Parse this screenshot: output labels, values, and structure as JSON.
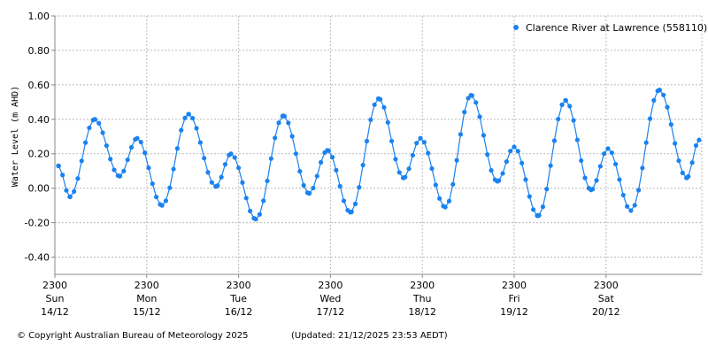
{
  "chart_data": {
    "type": "line",
    "title": "",
    "xlabel": "",
    "ylabel": "Water Level (m AHD)",
    "ylim": [
      -0.5,
      1.0
    ],
    "yticks": [
      "1.00",
      "0.80",
      "0.60",
      "0.40",
      "0.20",
      "0.00",
      "-0.20",
      "-0.40"
    ],
    "ytick_values": [
      1.0,
      0.8,
      0.6,
      0.4,
      0.2,
      0.0,
      -0.2,
      -0.4
    ],
    "x_unit": "hours since 2300 14/12",
    "xlim": [
      0,
      169
    ],
    "xticks": [
      {
        "time": "2300",
        "day": "Sun",
        "date": "14/12",
        "hour": 0
      },
      {
        "time": "2300",
        "day": "Mon",
        "date": "15/12",
        "hour": 24
      },
      {
        "time": "2300",
        "day": "Tue",
        "date": "16/12",
        "hour": 48
      },
      {
        "time": "2300",
        "day": "Wed",
        "date": "17/12",
        "hour": 72
      },
      {
        "time": "2300",
        "day": "Thu",
        "date": "18/12",
        "hour": 96
      },
      {
        "time": "2300",
        "day": "Fri",
        "date": "19/12",
        "hour": 120
      },
      {
        "time": "2300",
        "day": "Sat",
        "date": "20/12",
        "hour": 144
      }
    ],
    "grid": true,
    "legend_position": "top-right",
    "series": [
      {
        "name": "Clarence River at Lawrence (558110)",
        "color": "#1a82f0",
        "note": "turning points (hour, level m); hourly samples between",
        "x": [
          0.9,
          3.9,
          10.4,
          16.9,
          21.5,
          28.0,
          34.9,
          42.1,
          46.0,
          52.5,
          59.7,
          66.4,
          71.2,
          77.2,
          84.6,
          91.1,
          95.5,
          102.0,
          108.7,
          115.6,
          120.0,
          126.2,
          133.4,
          140.1,
          144.5,
          150.5,
          157.9,
          165.1,
          168.3
        ],
        "values": [
          0.13,
          -0.05,
          0.4,
          0.07,
          0.29,
          -0.1,
          0.43,
          0.01,
          0.2,
          -0.18,
          0.42,
          -0.03,
          0.22,
          -0.14,
          0.52,
          0.06,
          0.29,
          -0.11,
          0.54,
          0.04,
          0.24,
          -0.16,
          0.51,
          -0.01,
          0.23,
          -0.13,
          0.57,
          0.06,
          0.28
        ]
      }
    ]
  },
  "footer": {
    "copyright": "© Copyright Australian Bureau of Meteorology 2025",
    "updated": "(Updated: 21/12/2025 23:53 AEDT)"
  }
}
